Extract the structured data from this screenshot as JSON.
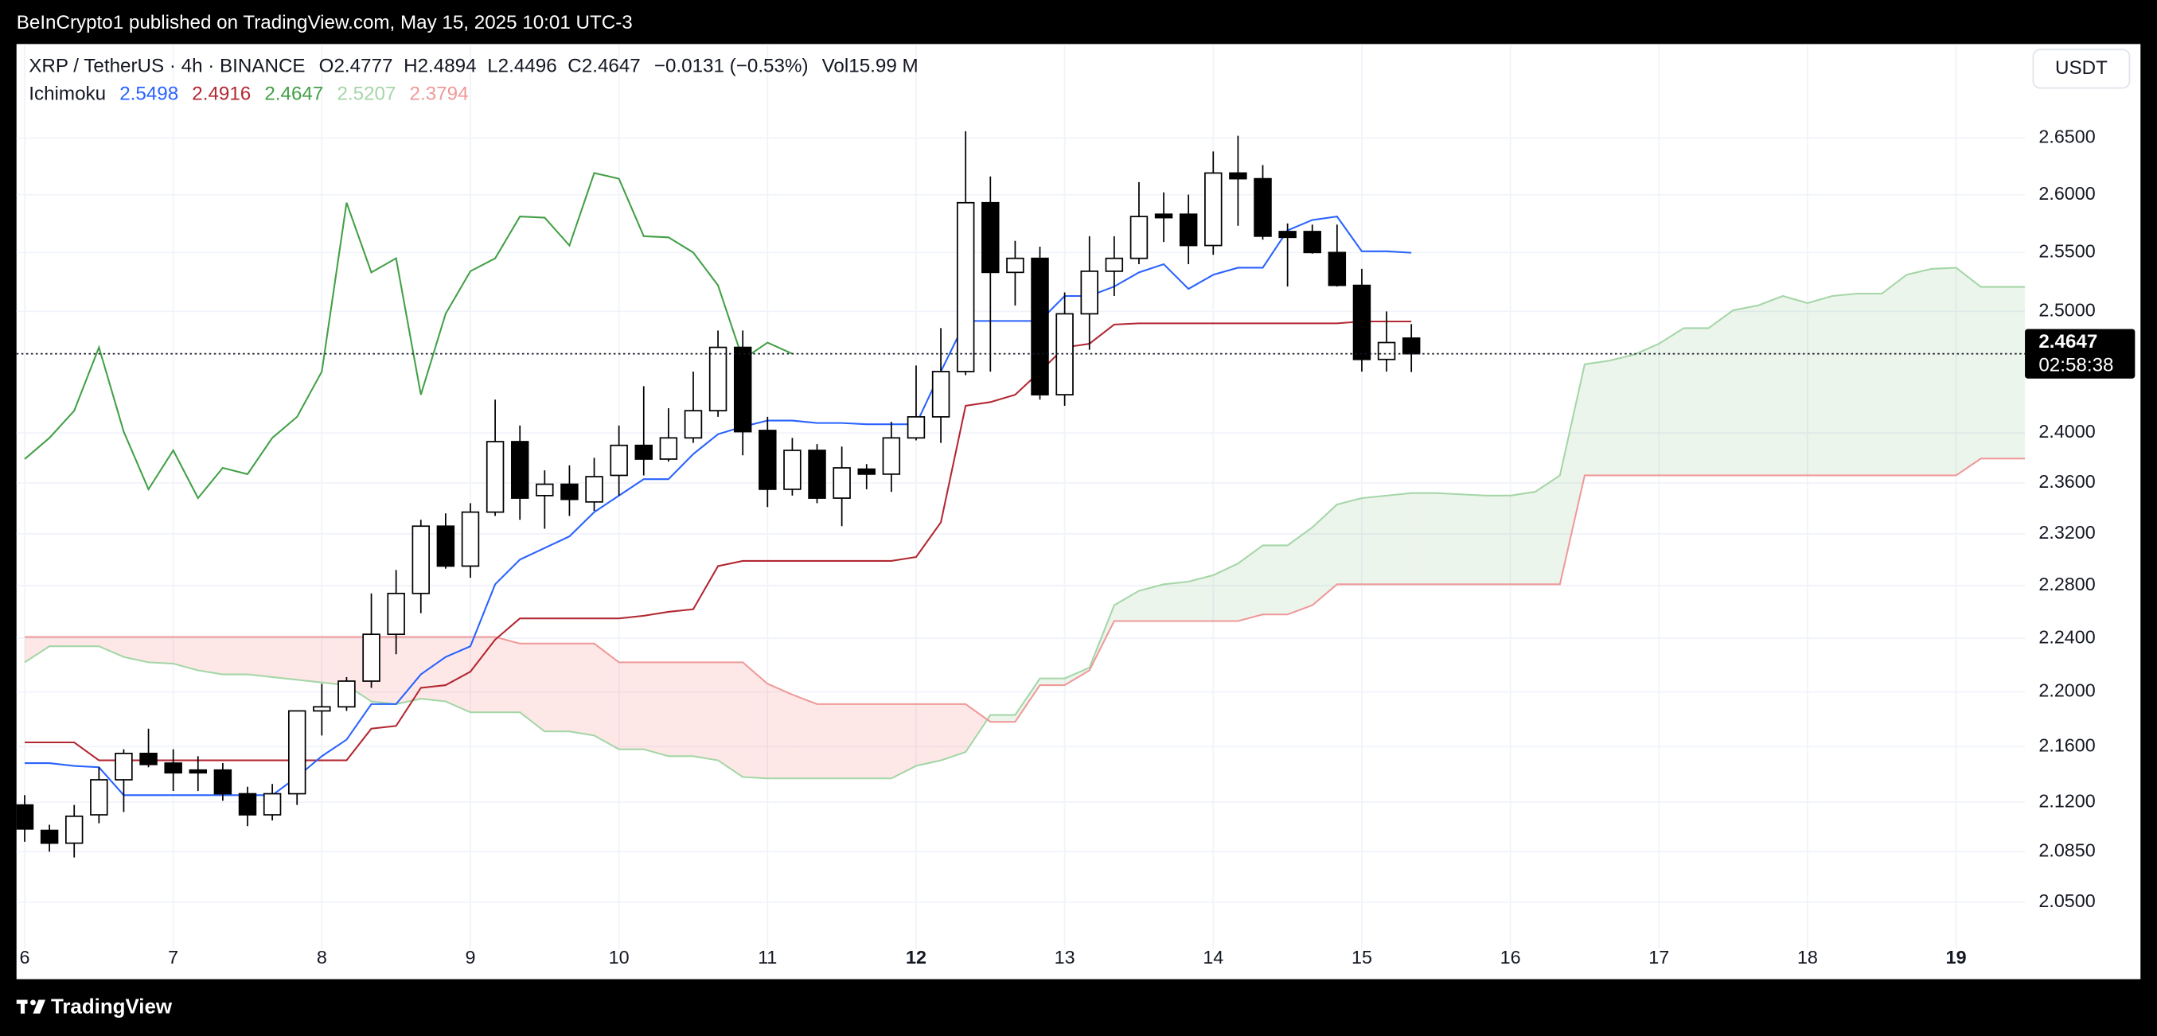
{
  "banner": {
    "text": "BeInCrypto1 published on TradingView.com, May 15, 2025 10:01 UTC-3"
  },
  "footer": {
    "brand": "TradingView"
  },
  "chart_data": {
    "type": "candlestick",
    "symbol": "XRP / TetherUS · 4h · BINANCE",
    "ohlc_labels": [
      "O",
      "H",
      "L",
      "C"
    ],
    "change": "−0.0131 (−0.53%)",
    "volume_label": "Vol",
    "volume": "15.99 M",
    "currency": "USDT",
    "countdown": "02:58:38",
    "ylog": true,
    "grid": true,
    "ylim": [
      2.018,
      2.735
    ],
    "xlim": [
      -0.33,
      80.78
    ],
    "yticks": [
      {
        "value": 2.65,
        "label": "2.6500"
      },
      {
        "value": 2.6,
        "label": "2.6000"
      },
      {
        "value": 2.55,
        "label": "2.5500"
      },
      {
        "value": 2.5,
        "label": "2.5000"
      },
      {
        "value": 2.4,
        "label": "2.4000"
      },
      {
        "value": 2.36,
        "label": "2.3600"
      },
      {
        "value": 2.32,
        "label": "2.3200"
      },
      {
        "value": 2.28,
        "label": "2.2800"
      },
      {
        "value": 2.24,
        "label": "2.2400"
      },
      {
        "value": 2.2,
        "label": "2.2000"
      },
      {
        "value": 2.16,
        "label": "2.1600"
      },
      {
        "value": 2.12,
        "label": "2.1200"
      },
      {
        "value": 2.085,
        "label": "2.0850"
      },
      {
        "value": 2.05,
        "label": "2.0500"
      }
    ],
    "xticks": [
      {
        "value": 0,
        "label": "6"
      },
      {
        "value": 6,
        "label": "7"
      },
      {
        "value": 12,
        "label": "8"
      },
      {
        "value": 18,
        "label": "9"
      },
      {
        "value": 24,
        "label": "10"
      },
      {
        "value": 30,
        "label": "11"
      },
      {
        "value": 36,
        "label": "12",
        "bold": true
      },
      {
        "value": 42,
        "label": "13"
      },
      {
        "value": 48,
        "label": "14"
      },
      {
        "value": 54,
        "label": "15"
      },
      {
        "value": 60,
        "label": "16"
      },
      {
        "value": 66,
        "label": "17"
      },
      {
        "value": 72,
        "label": "18"
      },
      {
        "value": 78,
        "label": "19",
        "bold": true
      }
    ],
    "up_color": "#ffffff",
    "down_color": "#000000",
    "candles": {
      "open": [
        2.118,
        2.1,
        2.091,
        2.111,
        2.136,
        2.155,
        2.148,
        2.143,
        2.143,
        2.126,
        2.111,
        2.126,
        2.186,
        2.189,
        2.208,
        2.243,
        2.274,
        2.326,
        2.295,
        2.337,
        2.393,
        2.35,
        2.359,
        2.345,
        2.366,
        2.39,
        2.379,
        2.396,
        2.418,
        2.47,
        2.402,
        2.355,
        2.386,
        2.348,
        2.371,
        2.367,
        2.396,
        2.413,
        2.45,
        2.593,
        2.533,
        2.545,
        2.431,
        2.498,
        2.534,
        2.545,
        2.583,
        2.583,
        2.556,
        2.619,
        2.614,
        2.568,
        2.568,
        2.55,
        2.522,
        2.46,
        2.4777
      ],
      "high": [
        2.125,
        2.104,
        2.118,
        2.145,
        2.158,
        2.173,
        2.158,
        2.153,
        2.148,
        2.131,
        2.133,
        2.186,
        2.206,
        2.211,
        2.274,
        2.292,
        2.331,
        2.336,
        2.344,
        2.427,
        2.406,
        2.37,
        2.374,
        2.38,
        2.406,
        2.438,
        2.42,
        2.45,
        2.484,
        2.484,
        2.413,
        2.396,
        2.391,
        2.389,
        2.375,
        2.409,
        2.455,
        2.486,
        2.656,
        2.616,
        2.56,
        2.555,
        2.516,
        2.564,
        2.564,
        2.611,
        2.602,
        2.6,
        2.638,
        2.652,
        2.626,
        2.575,
        2.574,
        2.574,
        2.536,
        2.5,
        2.4894
      ],
      "low": [
        2.092,
        2.085,
        2.081,
        2.105,
        2.113,
        2.145,
        2.128,
        2.128,
        2.121,
        2.103,
        2.107,
        2.118,
        2.168,
        2.186,
        2.203,
        2.228,
        2.259,
        2.293,
        2.286,
        2.334,
        2.331,
        2.324,
        2.334,
        2.338,
        2.35,
        2.366,
        2.377,
        2.392,
        2.413,
        2.382,
        2.341,
        2.35,
        2.344,
        2.326,
        2.355,
        2.353,
        2.394,
        2.392,
        2.447,
        2.45,
        2.505,
        2.427,
        2.422,
        2.468,
        2.513,
        2.54,
        2.559,
        2.54,
        2.548,
        2.573,
        2.561,
        2.521,
        2.549,
        2.521,
        2.45,
        2.45,
        2.4496
      ],
      "close": [
        2.101,
        2.091,
        2.11,
        2.136,
        2.155,
        2.147,
        2.141,
        2.141,
        2.126,
        2.111,
        2.126,
        2.186,
        2.189,
        2.208,
        2.243,
        2.274,
        2.326,
        2.295,
        2.337,
        2.393,
        2.348,
        2.359,
        2.347,
        2.365,
        2.39,
        2.379,
        2.396,
        2.418,
        2.47,
        2.401,
        2.355,
        2.386,
        2.348,
        2.372,
        2.367,
        2.396,
        2.413,
        2.45,
        2.593,
        2.533,
        2.545,
        2.431,
        2.498,
        2.534,
        2.545,
        2.581,
        2.58,
        2.556,
        2.619,
        2.614,
        2.564,
        2.563,
        2.55,
        2.522,
        2.46,
        2.474,
        2.4647
      ]
    },
    "ichimoku": {
      "label": "Ichimoku",
      "cloud_up_color": "rgba(67,160,71,0.10)",
      "cloud_down_color": "rgba(244,67,54,0.12)",
      "lines": [
        {
          "color": "#2962ff",
          "values": [
            2.148,
            2.148,
            2.146,
            2.145,
            2.125,
            2.125,
            2.125,
            2.125,
            2.125,
            2.125,
            2.125,
            2.138,
            2.153,
            2.165,
            2.191,
            2.191,
            2.213,
            2.226,
            2.234,
            2.281,
            2.3,
            2.309,
            2.318,
            2.337,
            2.35,
            2.363,
            2.363,
            2.383,
            2.399,
            2.405,
            2.41,
            2.41,
            2.408,
            2.408,
            2.407,
            2.407,
            2.407,
            2.45,
            2.492,
            2.492,
            2.492,
            2.492,
            2.513,
            2.513,
            2.521,
            2.533,
            2.54,
            2.519,
            2.531,
            2.537,
            2.537,
            2.569,
            2.578,
            2.581,
            2.551,
            2.551,
            2.5498,
            null,
            null,
            null,
            null,
            null,
            null,
            null,
            null,
            null,
            null,
            null,
            null,
            null,
            null,
            null,
            null,
            null,
            null,
            null,
            null,
            null,
            null,
            null,
            null,
            null
          ]
        },
        {
          "color": "#b22833",
          "values": [
            2.163,
            2.163,
            2.163,
            2.15,
            2.15,
            2.15,
            2.15,
            2.15,
            2.15,
            2.15,
            2.15,
            2.15,
            2.15,
            2.15,
            2.173,
            2.175,
            2.203,
            2.205,
            2.215,
            2.239,
            2.255,
            2.255,
            2.255,
            2.255,
            2.255,
            2.257,
            2.26,
            2.262,
            2.295,
            2.299,
            2.299,
            2.299,
            2.299,
            2.299,
            2.299,
            2.299,
            2.302,
            2.329,
            2.422,
            2.425,
            2.431,
            2.45,
            2.47,
            2.473,
            2.489,
            2.49,
            2.49,
            2.49,
            2.49,
            2.49,
            2.49,
            2.49,
            2.49,
            2.49,
            2.4916,
            2.4916,
            2.4916,
            null,
            null,
            null,
            null,
            null,
            null,
            null,
            null,
            null,
            null,
            null,
            null,
            null,
            null,
            null,
            null,
            null,
            null,
            null,
            null,
            null,
            null,
            null,
            null,
            null
          ]
        },
        {
          "color": "#43a047",
          "values": [
            2.379,
            2.396,
            2.418,
            2.47,
            2.401,
            2.355,
            2.386,
            2.348,
            2.372,
            2.367,
            2.396,
            2.413,
            2.45,
            2.593,
            2.533,
            2.545,
            2.431,
            2.498,
            2.534,
            2.545,
            2.581,
            2.58,
            2.556,
            2.619,
            2.614,
            2.564,
            2.563,
            2.55,
            2.522,
            2.46,
            2.474,
            2.4647,
            null,
            null,
            null,
            null,
            null,
            null,
            null,
            null,
            null,
            null,
            null,
            null,
            null,
            null,
            null,
            null,
            null,
            null,
            null,
            null,
            null,
            null,
            null,
            null,
            null,
            null,
            null,
            null,
            null,
            null,
            null,
            null,
            null,
            null,
            null,
            null,
            null,
            null,
            null,
            null,
            null,
            null,
            null,
            null,
            null,
            null,
            null,
            null,
            null,
            null
          ]
        },
        {
          "color": "#a5d6a7",
          "values": [
            2.222,
            2.234,
            2.234,
            2.234,
            2.226,
            2.222,
            2.221,
            2.216,
            2.213,
            2.213,
            2.211,
            2.209,
            2.207,
            2.205,
            2.193,
            2.191,
            2.195,
            2.193,
            2.185,
            2.185,
            2.185,
            2.171,
            2.171,
            2.168,
            2.158,
            2.158,
            2.153,
            2.153,
            2.15,
            2.138,
            2.137,
            2.137,
            2.137,
            2.137,
            2.137,
            2.137,
            2.146,
            2.15,
            2.156,
            2.183,
            2.183,
            2.21,
            2.21,
            2.218,
            2.265,
            2.276,
            2.281,
            2.283,
            2.288,
            2.297,
            2.311,
            2.311,
            2.325,
            2.343,
            2.348,
            2.35,
            2.352,
            2.352,
            2.351,
            2.35,
            2.35,
            2.353,
            2.366,
            2.456,
            2.459,
            2.464,
            2.473,
            2.486,
            2.486,
            2.501,
            2.505,
            2.513,
            2.507,
            2.513,
            2.515,
            2.515,
            2.531,
            2.536,
            2.537,
            2.5207,
            2.5207,
            2.5207
          ]
        },
        {
          "color": "#ef9a9a",
          "values": [
            2.241,
            2.241,
            2.241,
            2.241,
            2.241,
            2.241,
            2.241,
            2.241,
            2.241,
            2.241,
            2.241,
            2.241,
            2.241,
            2.241,
            2.241,
            2.241,
            2.241,
            2.241,
            2.241,
            2.241,
            2.236,
            2.236,
            2.236,
            2.236,
            2.222,
            2.222,
            2.222,
            2.222,
            2.222,
            2.222,
            2.206,
            2.198,
            2.191,
            2.191,
            2.191,
            2.191,
            2.191,
            2.191,
            2.191,
            2.178,
            2.178,
            2.205,
            2.205,
            2.216,
            2.253,
            2.253,
            2.253,
            2.253,
            2.253,
            2.253,
            2.258,
            2.258,
            2.265,
            2.281,
            2.281,
            2.281,
            2.281,
            2.281,
            2.281,
            2.281,
            2.281,
            2.281,
            2.281,
            2.366,
            2.366,
            2.366,
            2.366,
            2.366,
            2.366,
            2.366,
            2.366,
            2.366,
            2.366,
            2.366,
            2.366,
            2.366,
            2.366,
            2.366,
            2.366,
            2.3794,
            2.3794,
            2.3794
          ]
        }
      ]
    }
  }
}
